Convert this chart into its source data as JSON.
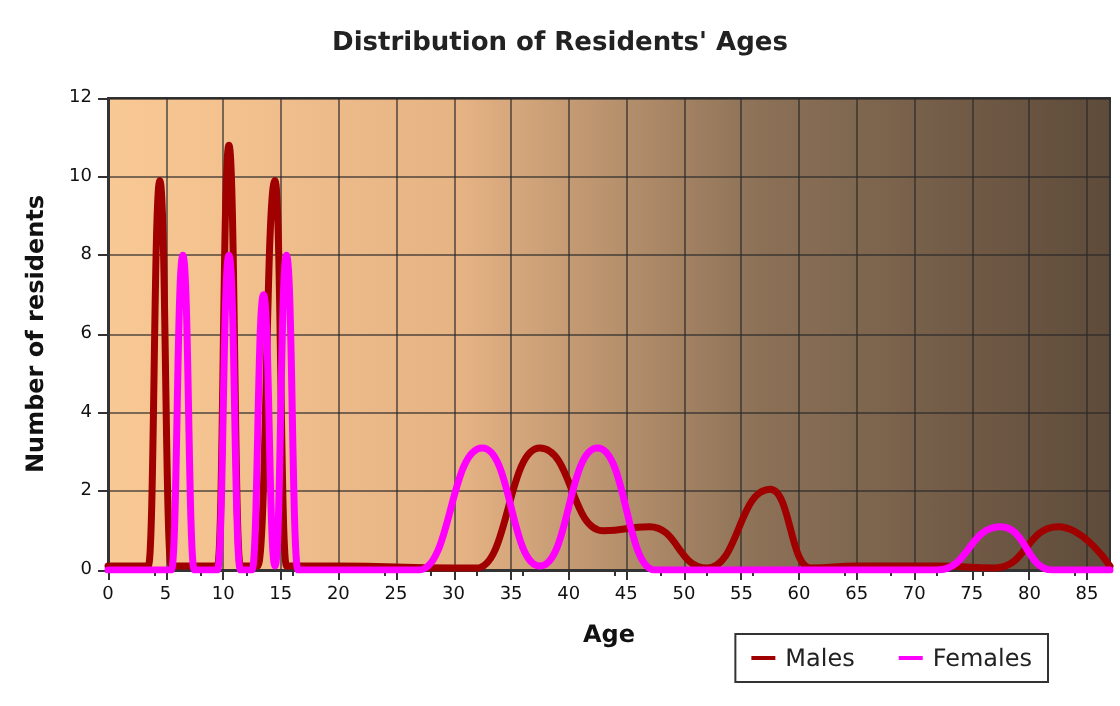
{
  "chart_data": {
    "type": "line",
    "title": "Distribution of Residents' Ages",
    "xlabel": "Age",
    "ylabel": "Number of residents",
    "xlim": [
      0,
      87
    ],
    "xticks": [
      0,
      5,
      10,
      15,
      20,
      25,
      30,
      35,
      40,
      45,
      50,
      55,
      60,
      65,
      70,
      75,
      80,
      85
    ],
    "ylim": [
      0,
      12
    ],
    "yticks": [
      0,
      2,
      4,
      6,
      8,
      10,
      12
    ],
    "grid": true,
    "legend": "bottom right",
    "marker": "none",
    "line_style": "solid",
    "series": [
      {
        "name": "Males",
        "color": "#a00000",
        "x": [
          0,
          3.5,
          4.5,
          5.5,
          7,
          9.5,
          10.5,
          11.5,
          13,
          14.5,
          15.5,
          20,
          30,
          32,
          37.5,
          43,
          47,
          52,
          57.5,
          61,
          65,
          72,
          77,
          82.5,
          87
        ],
        "values": [
          0.1,
          0.1,
          9.9,
          0.1,
          0.1,
          0.1,
          10.8,
          0.1,
          0.1,
          9.9,
          0.1,
          0.1,
          0.05,
          0.05,
          3.1,
          1.0,
          1.1,
          0.05,
          2.05,
          0.05,
          0.1,
          0.1,
          0.05,
          1.1,
          0.1
        ]
      },
      {
        "name": "Females",
        "color": "#ff00ff",
        "x": [
          0,
          5.5,
          6.5,
          7.5,
          9.5,
          10.5,
          11.5,
          12.5,
          13.5,
          14.5,
          15.5,
          16.5,
          27,
          32.5,
          37.5,
          42.5,
          47.5,
          72,
          77.5,
          82,
          87
        ],
        "values": [
          0,
          0,
          8,
          0,
          0,
          8,
          0,
          0,
          7,
          0.1,
          8,
          0,
          0,
          3.1,
          0.1,
          3.1,
          0,
          0,
          1.1,
          0,
          0
        ]
      }
    ]
  }
}
